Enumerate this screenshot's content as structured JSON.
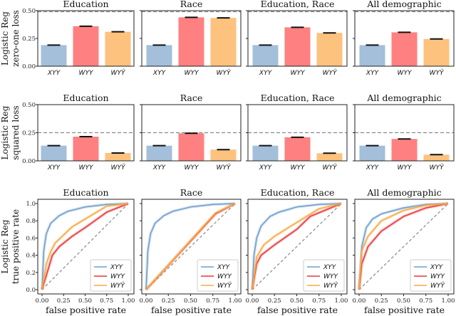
{
  "colors": {
    "bar": [
      "#a3bfda",
      "#ff8080",
      "#fdc27e"
    ],
    "line": [
      "#6f9fce",
      "#e8373c",
      "#f7a840"
    ],
    "ref": "#888888"
  },
  "series_names": [
    "XYY",
    "WYY",
    "WYŶ"
  ],
  "row_labels": [
    [
      "Logistic Reg",
      "zero-one loss"
    ],
    [
      "Logistic Reg",
      "squared loss"
    ],
    [
      "Logistic Reg",
      "true positive rate"
    ]
  ],
  "chart_data": [
    {
      "type": "bar",
      "row": 0,
      "title": "Education",
      "categories": [
        "XYY",
        "WYY",
        "WYŶ"
      ],
      "values": [
        0.19,
        0.36,
        0.31
      ],
      "baseline": 0.49,
      "ylim": [
        0,
        0.5
      ],
      "yticks": [
        "0.00",
        "0.25",
        "0.50"
      ]
    },
    {
      "type": "bar",
      "row": 0,
      "title": "Race",
      "categories": [
        "XYY",
        "WYY",
        "WYŶ"
      ],
      "values": [
        0.19,
        0.44,
        0.435
      ],
      "baseline": 0.49,
      "ylim": [
        0,
        0.5
      ]
    },
    {
      "type": "bar",
      "row": 0,
      "title": "Education, Race",
      "categories": [
        "XYY",
        "WYY",
        "WYŶ"
      ],
      "values": [
        0.19,
        0.35,
        0.3
      ],
      "baseline": 0.49,
      "ylim": [
        0,
        0.5
      ]
    },
    {
      "type": "bar",
      "row": 0,
      "title": "All demographic",
      "categories": [
        "XYY",
        "WYY",
        "WYŶ"
      ],
      "values": [
        0.19,
        0.305,
        0.245
      ],
      "baseline": 0.49,
      "ylim": [
        0,
        0.5
      ]
    },
    {
      "type": "bar",
      "row": 1,
      "title": "Education",
      "categories": [
        "XYY",
        "WYY",
        "WYŶ"
      ],
      "values": [
        0.135,
        0.215,
        0.07
      ],
      "baseline": 0.25,
      "ylim": [
        0,
        0.5
      ],
      "yticks": [
        "0.00",
        "0.25",
        "0.50"
      ]
    },
    {
      "type": "bar",
      "row": 1,
      "title": "Race",
      "categories": [
        "XYY",
        "WYY",
        "WYŶ"
      ],
      "values": [
        0.135,
        0.245,
        0.1
      ],
      "baseline": 0.25,
      "ylim": [
        0,
        0.5
      ]
    },
    {
      "type": "bar",
      "row": 1,
      "title": "Education, Race",
      "categories": [
        "XYY",
        "WYY",
        "WYŶ"
      ],
      "values": [
        0.135,
        0.21,
        0.068
      ],
      "baseline": 0.25,
      "ylim": [
        0,
        0.5
      ]
    },
    {
      "type": "bar",
      "row": 1,
      "title": "All demographic",
      "categories": [
        "XYY",
        "WYY",
        "WYŶ"
      ],
      "values": [
        0.135,
        0.195,
        0.055
      ],
      "baseline": 0.25,
      "ylim": [
        0,
        0.5
      ]
    },
    {
      "type": "line",
      "row": 2,
      "title": "Education",
      "xlabel": "false positive rate",
      "xlim": [
        0,
        1
      ],
      "ylim": [
        0,
        1
      ],
      "xticks": [
        "0.00",
        "0.25",
        "0.50",
        "0.75",
        "1.00"
      ],
      "yticks": [
        "0.0",
        "0.2",
        "0.4",
        "0.6",
        "0.8",
        "1.0"
      ],
      "legend": "bottom-right",
      "series": [
        {
          "name": "XYY",
          "points": [
            [
              0,
              0
            ],
            [
              0.02,
              0.45
            ],
            [
              0.05,
              0.65
            ],
            [
              0.1,
              0.77
            ],
            [
              0.2,
              0.86
            ],
            [
              0.3,
              0.91
            ],
            [
              0.5,
              0.96
            ],
            [
              0.75,
              0.99
            ],
            [
              1,
              1
            ]
          ]
        },
        {
          "name": "WYY",
          "points": [
            [
              0,
              0
            ],
            [
              0.12,
              0.4
            ],
            [
              0.2,
              0.5
            ],
            [
              0.35,
              0.62
            ],
            [
              0.5,
              0.72
            ],
            [
              0.75,
              0.9
            ],
            [
              1,
              1
            ]
          ]
        },
        {
          "name": "WYŶ",
          "points": [
            [
              0,
              0
            ],
            [
              0.05,
              0.3
            ],
            [
              0.1,
              0.44
            ],
            [
              0.15,
              0.54
            ],
            [
              0.35,
              0.73
            ],
            [
              0.5,
              0.82
            ],
            [
              0.75,
              0.97
            ],
            [
              1,
              1
            ]
          ]
        }
      ]
    },
    {
      "type": "line",
      "row": 2,
      "title": "Race",
      "xlabel": "false positive rate",
      "xlim": [
        0,
        1
      ],
      "ylim": [
        0,
        1
      ],
      "xticks": [
        "0.00",
        "0.25",
        "0.50",
        "0.75",
        "1.00"
      ],
      "legend": "bottom-right",
      "series": [
        {
          "name": "XYY",
          "points": [
            [
              0,
              0
            ],
            [
              0.02,
              0.45
            ],
            [
              0.05,
              0.65
            ],
            [
              0.1,
              0.77
            ],
            [
              0.2,
              0.86
            ],
            [
              0.3,
              0.91
            ],
            [
              0.5,
              0.96
            ],
            [
              0.75,
              0.99
            ],
            [
              1,
              1
            ]
          ]
        },
        {
          "name": "WYY",
          "points": [
            [
              0,
              0
            ],
            [
              0.78,
              0.88
            ],
            [
              1,
              1
            ]
          ]
        },
        {
          "name": "WYŶ",
          "points": [
            [
              0,
              0
            ],
            [
              0.78,
              0.89
            ],
            [
              1,
              1
            ]
          ]
        }
      ]
    },
    {
      "type": "line",
      "row": 2,
      "title": "Education, Race",
      "xlabel": "false positive rate",
      "xlim": [
        0,
        1
      ],
      "ylim": [
        0,
        1
      ],
      "xticks": [
        "0.00",
        "0.25",
        "0.50",
        "0.75",
        "1.00"
      ],
      "legend": "bottom-right",
      "series": [
        {
          "name": "XYY",
          "points": [
            [
              0,
              0
            ],
            [
              0.02,
              0.4
            ],
            [
              0.05,
              0.6
            ],
            [
              0.1,
              0.74
            ],
            [
              0.2,
              0.85
            ],
            [
              0.3,
              0.9
            ],
            [
              0.5,
              0.96
            ],
            [
              0.75,
              0.99
            ],
            [
              1,
              1
            ]
          ]
        },
        {
          "name": "WYY",
          "points": [
            [
              0,
              0
            ],
            [
              0.05,
              0.3
            ],
            [
              0.1,
              0.4
            ],
            [
              0.25,
              0.52
            ],
            [
              0.5,
              0.7
            ],
            [
              0.65,
              0.85
            ],
            [
              1,
              1
            ]
          ]
        },
        {
          "name": "WYŶ",
          "points": [
            [
              0,
              0
            ],
            [
              0.05,
              0.38
            ],
            [
              0.13,
              0.52
            ],
            [
              0.25,
              0.62
            ],
            [
              0.5,
              0.78
            ],
            [
              0.75,
              0.94
            ],
            [
              1,
              1
            ]
          ]
        }
      ]
    },
    {
      "type": "line",
      "row": 2,
      "title": "All demographic",
      "xlabel": "false positive rate",
      "xlim": [
        0,
        1
      ],
      "ylim": [
        0,
        1
      ],
      "xticks": [
        "0.00",
        "0.25",
        "0.50",
        "0.75",
        "1.00"
      ],
      "legend": "bottom-right",
      "series": [
        {
          "name": "XYY",
          "points": [
            [
              0,
              0
            ],
            [
              0.03,
              0.5
            ],
            [
              0.08,
              0.72
            ],
            [
              0.15,
              0.82
            ],
            [
              0.25,
              0.88
            ],
            [
              0.5,
              0.95
            ],
            [
              0.75,
              0.99
            ],
            [
              1,
              1
            ]
          ]
        },
        {
          "name": "WYY",
          "points": [
            [
              0,
              0
            ],
            [
              0.03,
              0.3
            ],
            [
              0.1,
              0.5
            ],
            [
              0.25,
              0.68
            ],
            [
              0.5,
              0.85
            ],
            [
              0.75,
              0.95
            ],
            [
              1,
              1
            ]
          ]
        },
        {
          "name": "WYŶ",
          "points": [
            [
              0,
              0
            ],
            [
              0.03,
              0.45
            ],
            [
              0.1,
              0.62
            ],
            [
              0.25,
              0.8
            ],
            [
              0.5,
              0.92
            ],
            [
              0.75,
              0.98
            ],
            [
              1,
              1
            ]
          ]
        }
      ]
    }
  ]
}
